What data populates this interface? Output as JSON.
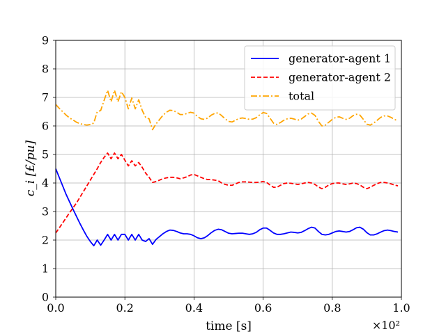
{
  "chart_data": {
    "type": "line",
    "xlabel": "time [s]",
    "ylabel": "c_i [£/pu]",
    "xlim": [
      0,
      1
    ],
    "ylim": [
      0,
      9
    ],
    "x_ticks": [
      "0.0",
      "0.2",
      "0.4",
      "0.6",
      "0.8",
      "1.0"
    ],
    "y_ticks": [
      "0",
      "1",
      "2",
      "3",
      "4",
      "5",
      "6",
      "7",
      "8",
      "9"
    ],
    "x_offset_label": "×10²",
    "grid": true,
    "legend_position": "top-right",
    "colors": {
      "agent1": "#0000ff",
      "agent2": "#ff0000",
      "total": "#ffa500"
    },
    "series": [
      {
        "name": "generator-agent 1",
        "style": "solid",
        "x": [
          0,
          0.01,
          0.02,
          0.03,
          0.04,
          0.05,
          0.06,
          0.07,
          0.08,
          0.09,
          0.1,
          0.11,
          0.12,
          0.13,
          0.14,
          0.15,
          0.16,
          0.17,
          0.18,
          0.19,
          0.2,
          0.21,
          0.22,
          0.23,
          0.24,
          0.25,
          0.26,
          0.27,
          0.28,
          0.29,
          0.3,
          0.31,
          0.32,
          0.33,
          0.34,
          0.35,
          0.36,
          0.37,
          0.38,
          0.39,
          0.4,
          0.41,
          0.42,
          0.43,
          0.44,
          0.45,
          0.46,
          0.47,
          0.48,
          0.49,
          0.5,
          0.51,
          0.52,
          0.53,
          0.54,
          0.55,
          0.56,
          0.57,
          0.58,
          0.59,
          0.6,
          0.61,
          0.62,
          0.63,
          0.64,
          0.65,
          0.66,
          0.67,
          0.68,
          0.69,
          0.7,
          0.71,
          0.72,
          0.73,
          0.74,
          0.75,
          0.76,
          0.77,
          0.78,
          0.79,
          0.8,
          0.81,
          0.82,
          0.83,
          0.84,
          0.85,
          0.86,
          0.87,
          0.88,
          0.89,
          0.9,
          0.91,
          0.92,
          0.93,
          0.94,
          0.95,
          0.96,
          0.97,
          0.98,
          0.99
        ],
        "values": [
          4.5,
          4.2,
          3.9,
          3.6,
          3.34,
          3.08,
          2.83,
          2.58,
          2.35,
          2.13,
          1.95,
          1.8,
          2.0,
          1.82,
          2.0,
          2.2,
          2.0,
          2.2,
          2.0,
          2.2,
          2.2,
          2.0,
          2.2,
          2.0,
          2.2,
          2.0,
          1.95,
          2.05,
          1.85,
          2.02,
          2.12,
          2.22,
          2.3,
          2.35,
          2.34,
          2.3,
          2.25,
          2.22,
          2.22,
          2.2,
          2.15,
          2.08,
          2.05,
          2.08,
          2.16,
          2.26,
          2.34,
          2.38,
          2.36,
          2.3,
          2.24,
          2.22,
          2.23,
          2.24,
          2.24,
          2.22,
          2.2,
          2.22,
          2.27,
          2.36,
          2.42,
          2.42,
          2.34,
          2.25,
          2.2,
          2.2,
          2.22,
          2.25,
          2.28,
          2.27,
          2.25,
          2.27,
          2.33,
          2.4,
          2.45,
          2.42,
          2.3,
          2.2,
          2.18,
          2.2,
          2.25,
          2.3,
          2.32,
          2.3,
          2.28,
          2.3,
          2.36,
          2.43,
          2.45,
          2.38,
          2.26,
          2.18,
          2.18,
          2.22,
          2.28,
          2.33,
          2.35,
          2.33,
          2.3,
          2.28
        ]
      },
      {
        "name": "generator-agent 2",
        "style": "dashed",
        "x": [
          0,
          0.01,
          0.02,
          0.03,
          0.04,
          0.05,
          0.06,
          0.07,
          0.08,
          0.09,
          0.1,
          0.11,
          0.12,
          0.13,
          0.14,
          0.15,
          0.16,
          0.17,
          0.18,
          0.19,
          0.2,
          0.21,
          0.22,
          0.23,
          0.24,
          0.25,
          0.26,
          0.27,
          0.28,
          0.29,
          0.3,
          0.31,
          0.32,
          0.33,
          0.34,
          0.35,
          0.36,
          0.37,
          0.38,
          0.39,
          0.4,
          0.41,
          0.42,
          0.43,
          0.44,
          0.45,
          0.46,
          0.47,
          0.48,
          0.49,
          0.5,
          0.51,
          0.52,
          0.53,
          0.54,
          0.55,
          0.56,
          0.57,
          0.58,
          0.59,
          0.6,
          0.61,
          0.62,
          0.63,
          0.64,
          0.65,
          0.66,
          0.67,
          0.68,
          0.69,
          0.7,
          0.71,
          0.72,
          0.73,
          0.74,
          0.75,
          0.76,
          0.77,
          0.78,
          0.79,
          0.8,
          0.81,
          0.82,
          0.83,
          0.84,
          0.85,
          0.86,
          0.87,
          0.88,
          0.89,
          0.9,
          0.91,
          0.92,
          0.93,
          0.94,
          0.95,
          0.96,
          0.97,
          0.98,
          0.99
        ],
        "values": [
          2.25,
          2.42,
          2.6,
          2.78,
          2.96,
          3.13,
          3.3,
          3.5,
          3.7,
          3.9,
          4.1,
          4.3,
          4.5,
          4.72,
          4.9,
          5.05,
          4.85,
          5.05,
          4.85,
          5.0,
          4.8,
          4.6,
          4.78,
          4.6,
          4.72,
          4.55,
          4.35,
          4.2,
          4.02,
          4.05,
          4.1,
          4.15,
          4.18,
          4.2,
          4.2,
          4.18,
          4.15,
          4.18,
          4.22,
          4.28,
          4.3,
          4.25,
          4.2,
          4.15,
          4.12,
          4.12,
          4.1,
          4.08,
          4.0,
          3.95,
          3.92,
          3.92,
          3.97,
          4.02,
          4.04,
          4.04,
          4.03,
          4.02,
          4.02,
          4.03,
          4.05,
          4.02,
          3.93,
          3.85,
          3.85,
          3.92,
          3.98,
          4.0,
          3.99,
          3.97,
          3.95,
          3.97,
          4.0,
          4.02,
          4.0,
          3.95,
          3.86,
          3.8,
          3.85,
          3.93,
          3.98,
          4.0,
          4.0,
          3.97,
          3.95,
          3.97,
          4.0,
          3.98,
          3.93,
          3.85,
          3.8,
          3.85,
          3.92,
          3.98,
          4.02,
          4.02,
          4.0,
          3.97,
          3.93,
          3.9
        ]
      },
      {
        "name": "total",
        "style": "dashdot",
        "x": [
          0,
          0.01,
          0.02,
          0.03,
          0.04,
          0.05,
          0.06,
          0.07,
          0.08,
          0.09,
          0.1,
          0.11,
          0.12,
          0.13,
          0.14,
          0.15,
          0.16,
          0.17,
          0.18,
          0.19,
          0.2,
          0.21,
          0.22,
          0.23,
          0.24,
          0.25,
          0.26,
          0.27,
          0.28,
          0.29,
          0.3,
          0.31,
          0.32,
          0.33,
          0.34,
          0.35,
          0.36,
          0.37,
          0.38,
          0.39,
          0.4,
          0.41,
          0.42,
          0.43,
          0.44,
          0.45,
          0.46,
          0.47,
          0.48,
          0.49,
          0.5,
          0.51,
          0.52,
          0.53,
          0.54,
          0.55,
          0.56,
          0.57,
          0.58,
          0.59,
          0.6,
          0.61,
          0.62,
          0.63,
          0.64,
          0.65,
          0.66,
          0.67,
          0.68,
          0.69,
          0.7,
          0.71,
          0.72,
          0.73,
          0.74,
          0.75,
          0.76,
          0.77,
          0.78,
          0.79,
          0.8,
          0.81,
          0.82,
          0.83,
          0.84,
          0.85,
          0.86,
          0.87,
          0.88,
          0.89,
          0.9,
          0.91,
          0.92,
          0.93,
          0.94,
          0.95,
          0.96,
          0.97,
          0.98,
          0.99
        ],
        "values": [
          6.75,
          6.62,
          6.5,
          6.38,
          6.28,
          6.21,
          6.13,
          6.08,
          6.05,
          6.03,
          6.05,
          6.1,
          6.5,
          6.54,
          6.9,
          7.25,
          6.85,
          7.25,
          6.85,
          7.2,
          7.0,
          6.6,
          6.98,
          6.6,
          6.92,
          6.55,
          6.3,
          6.25,
          5.87,
          6.07,
          6.22,
          6.37,
          6.48,
          6.55,
          6.54,
          6.48,
          6.4,
          6.4,
          6.44,
          6.48,
          6.45,
          6.33,
          6.25,
          6.23,
          6.28,
          6.38,
          6.44,
          6.46,
          6.36,
          6.25,
          6.16,
          6.14,
          6.2,
          6.26,
          6.28,
          6.26,
          6.23,
          6.24,
          6.29,
          6.39,
          6.47,
          6.44,
          6.27,
          6.1,
          6.05,
          6.12,
          6.2,
          6.25,
          6.27,
          6.24,
          6.2,
          6.24,
          6.33,
          6.42,
          6.45,
          6.37,
          6.16,
          6.0,
          6.03,
          6.13,
          6.23,
          6.3,
          6.32,
          6.27,
          6.23,
          6.27,
          6.36,
          6.41,
          6.38,
          6.23,
          6.06,
          6.03,
          6.1,
          6.2,
          6.3,
          6.35,
          6.35,
          6.3,
          6.23,
          6.18
        ]
      }
    ]
  }
}
